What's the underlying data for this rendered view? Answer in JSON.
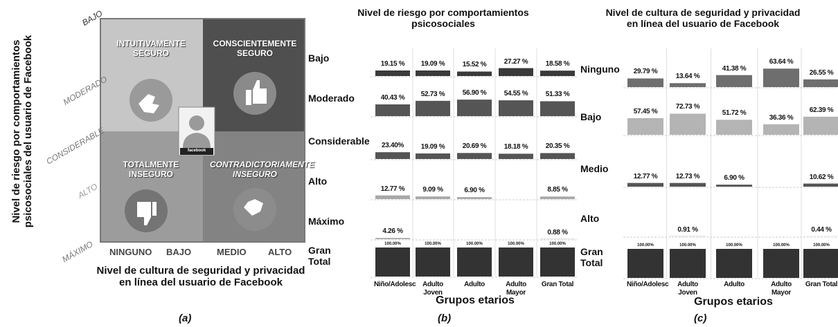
{
  "quadrant": {
    "y_axis_title": "Nivel de riesgo por comportamientos psicosociales del usuario de Facebook",
    "x_axis_title": "Nivel de cultura de seguridad y privacidad en línea del usuario de Facebook",
    "y_levels": [
      "BAJO",
      "MODERADO",
      "CONSIDERABLE",
      "ALTO",
      "MÁXIMO"
    ],
    "x_levels": [
      "NINGUNO",
      "BAJO",
      "MEDIO",
      "ALTO"
    ],
    "quadrants": [
      "INTUITIVAMENTE SEGURO",
      "CONSCIENTEMENTE SEGURO",
      "TOTALMENTE INSEGURO",
      "CONTRADICTORIAMENTE INSEGURO"
    ],
    "icon_label": "facebook"
  },
  "captions": [
    "(a)",
    "(b)",
    "(c)"
  ],
  "chart_data": [
    {
      "type": "bar",
      "title": "Nivel de riesgo por comportamientos psicosociales",
      "x_label": "Grupos etarios",
      "categories": [
        "Niño/Adolesc",
        "Adulto Joven",
        "Adulto",
        "Adulto Mayor",
        "Gran Total"
      ],
      "ylim": [
        0,
        100
      ],
      "series": [
        {
          "name": "Bajo",
          "color": "#3a3a3a",
          "values": [
            19.15,
            19.09,
            15.52,
            27.27,
            18.58
          ],
          "value_labels": [
            "19.15 %",
            "19.09 %",
            "15.52 %",
            "27.27 %",
            "18.58 %"
          ]
        },
        {
          "name": "Moderado",
          "color": "#555555",
          "values": [
            40.43,
            52.73,
            56.9,
            54.55,
            51.33
          ],
          "value_labels": [
            "40.43 %",
            "52.73 %",
            "56.90 %",
            "54.55 %",
            "51.33 %"
          ]
        },
        {
          "name": "Considerable",
          "color": "#555555",
          "values": [
            23.4,
            19.09,
            20.69,
            18.18,
            20.35
          ],
          "value_labels": [
            "23.40%",
            "19.09 %",
            "20.69 %",
            "18.18 %",
            "20.35 %"
          ]
        },
        {
          "name": "Alto",
          "color": "#a8a8a8",
          "values": [
            12.77,
            9.09,
            6.9,
            null,
            8.85
          ],
          "value_labels": [
            "12.77 %",
            "9.09 %",
            "6.90 %",
            null,
            "8.85 %"
          ]
        },
        {
          "name": "Máximo",
          "color": "#a8a8a8",
          "values": [
            4.26,
            null,
            null,
            null,
            0.88
          ],
          "value_labels": [
            "4.26 %",
            null,
            null,
            null,
            "0.88 %"
          ]
        },
        {
          "name": "Gran Total",
          "color": "#333333",
          "values": [
            100,
            100,
            100,
            100,
            100
          ],
          "value_labels": [
            "100.00%",
            "100.00%",
            "100.00%",
            "100.00%",
            "100.00%"
          ]
        }
      ]
    },
    {
      "type": "bar",
      "title": "Nivel de cultura de seguridad y privacidad en línea del usuario de Facebook",
      "x_label": "Grupos etarios",
      "categories": [
        "Niño/Adolesc",
        "Adulto Joven",
        "Adulto",
        "Adulto Mayor",
        "Gran Total"
      ],
      "ylim": [
        0,
        100
      ],
      "series": [
        {
          "name": "Ninguno",
          "color": "#6e6e6e",
          "values": [
            29.79,
            13.64,
            41.38,
            63.64,
            26.55
          ],
          "value_labels": [
            "29.79 %",
            "13.64 %",
            "41.38 %",
            "63.64 %",
            "26.55 %"
          ]
        },
        {
          "name": "Bajo",
          "color": "#b4b4b4",
          "values": [
            57.45,
            72.73,
            51.72,
            36.36,
            62.39
          ],
          "value_labels": [
            "57.45 %",
            "72.73 %",
            "51.72 %",
            "36.36 %",
            "62.39 %"
          ]
        },
        {
          "name": "Medio",
          "color": "#555555",
          "values": [
            12.77,
            12.73,
            6.9,
            null,
            10.62
          ],
          "value_labels": [
            "12.77 %",
            "12.73 %",
            "6.90 %",
            null,
            "10.62 %"
          ]
        },
        {
          "name": "Alto",
          "color": "#b4b4b4",
          "values": [
            null,
            0.91,
            null,
            null,
            0.44
          ],
          "value_labels": [
            null,
            "0.91 %",
            null,
            null,
            "0.44 %"
          ]
        },
        {
          "name": "Gran Total",
          "color": "#333333",
          "values": [
            100,
            100,
            100,
            100,
            100
          ],
          "value_labels": [
            "100.00%",
            "100.00%",
            "100.00%",
            "100.00%",
            "100.00%"
          ]
        }
      ]
    }
  ]
}
